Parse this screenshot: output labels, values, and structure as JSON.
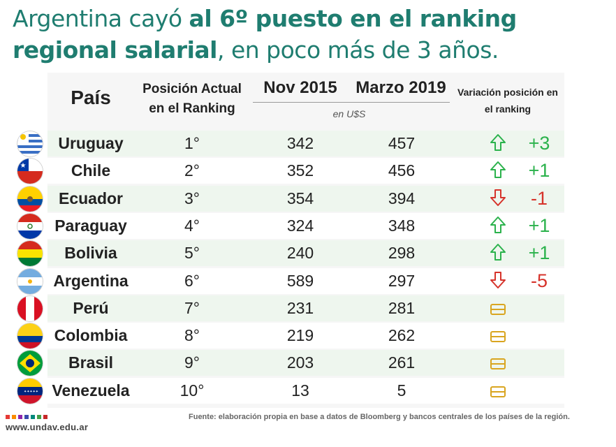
{
  "headline": {
    "part1": "Argentina cayó ",
    "part2": "al 6º puesto en el ranking",
    "part3": "regional salarial",
    "part4": ", en poco más de 3 años."
  },
  "chart_data": {
    "type": "table",
    "columns": {
      "country": "País",
      "position": "Posición Actual en el Ranking",
      "nov2015": "Nov 2015",
      "mar2019": "Marzo 2019",
      "currency": "en U$S",
      "variation": "Variación posición en el ranking"
    },
    "rows": [
      {
        "country": "Uruguay",
        "position": "1°",
        "nov2015": "342",
        "mar2019": "457",
        "trend": "up",
        "change": "+3"
      },
      {
        "country": "Chile",
        "position": "2°",
        "nov2015": "352",
        "mar2019": "456",
        "trend": "up",
        "change": "+1"
      },
      {
        "country": "Ecuador",
        "position": "3°",
        "nov2015": "354",
        "mar2019": "394",
        "trend": "down",
        "change": "-1"
      },
      {
        "country": "Paraguay",
        "position": "4°",
        "nov2015": "324",
        "mar2019": "348",
        "trend": "up",
        "change": "+1"
      },
      {
        "country": "Bolivia",
        "position": "5°",
        "nov2015": "240",
        "mar2019": "298",
        "trend": "up",
        "change": "+1"
      },
      {
        "country": "Argentina",
        "position": "6°",
        "nov2015": "589",
        "mar2019": "297",
        "trend": "down",
        "change": "-5"
      },
      {
        "country": "Perú",
        "position": "7°",
        "nov2015": "231",
        "mar2019": "281",
        "trend": "equal",
        "change": ""
      },
      {
        "country": "Colombia",
        "position": "8°",
        "nov2015": "219",
        "mar2019": "262",
        "trend": "equal",
        "change": ""
      },
      {
        "country": "Brasil",
        "position": "9°",
        "nov2015": "203",
        "mar2019": "261",
        "trend": "equal",
        "change": ""
      },
      {
        "country": "Venezuela",
        "position": "10°",
        "nov2015": "13",
        "mar2019": "5",
        "trend": "equal",
        "change": ""
      }
    ]
  },
  "colors": {
    "title": "#1f7d70",
    "up": "#2bb24c",
    "down": "#d6332b",
    "equal": "#d9a520",
    "row_tint": "#eef6ee",
    "header_bg": "#f4f4f4"
  },
  "footer": {
    "url": "www.undav.edu.ar",
    "source": "Fuente: elaboración propia en base a datos de Bloomberg y bancos centrales de los países de la región."
  }
}
